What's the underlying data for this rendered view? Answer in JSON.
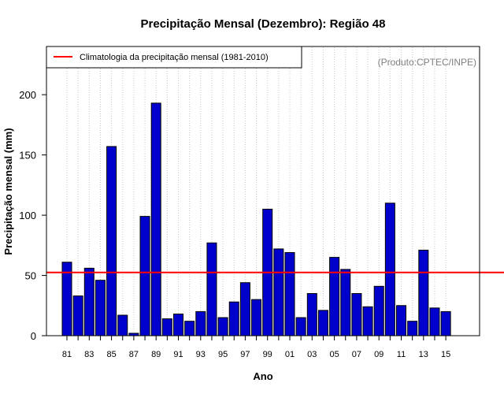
{
  "chart_data": {
    "type": "bar",
    "title": "Precipitação Mensal (Dezembro): Região 48",
    "xlabel": "Ano",
    "ylabel": "Precipitação mensal (mm)",
    "credit": "(Produto:CPTEC/INPE)",
    "ylim": [
      0,
      240
    ],
    "yticks": [
      0,
      50,
      100,
      150,
      200
    ],
    "grid": "vertical dotted",
    "legend_position": "top-left",
    "categories": [
      "81",
      "82",
      "83",
      "84",
      "85",
      "86",
      "87",
      "88",
      "89",
      "90",
      "91",
      "92",
      "93",
      "94",
      "95",
      "96",
      "97",
      "98",
      "99",
      "00",
      "01",
      "02",
      "03",
      "04",
      "05",
      "06",
      "07",
      "08",
      "09",
      "10",
      "11",
      "12",
      "13",
      "14",
      "15"
    ],
    "xtick_labels": [
      "81",
      "83",
      "85",
      "87",
      "89",
      "91",
      "93",
      "95",
      "97",
      "99",
      "01",
      "03",
      "05",
      "07",
      "09",
      "11",
      "13",
      "15"
    ],
    "series": [
      {
        "values": [
          61,
          33,
          56,
          46,
          157,
          17,
          2,
          99,
          193,
          14,
          18,
          12,
          20,
          77,
          15,
          28,
          44,
          30,
          105,
          72,
          69,
          15,
          35,
          21,
          65,
          55,
          35,
          24,
          41,
          110,
          25,
          12,
          71,
          23,
          20
        ]
      }
    ],
    "climatology": {
      "label": "Climatologia da precipitação mensal (1981-2010)",
      "value": 52.5
    },
    "colors": {
      "bar_fill": "#0000cd",
      "bar_stroke": "#000000",
      "climatology_line": "#ff0000",
      "grid": "#c8c8c8"
    }
  }
}
